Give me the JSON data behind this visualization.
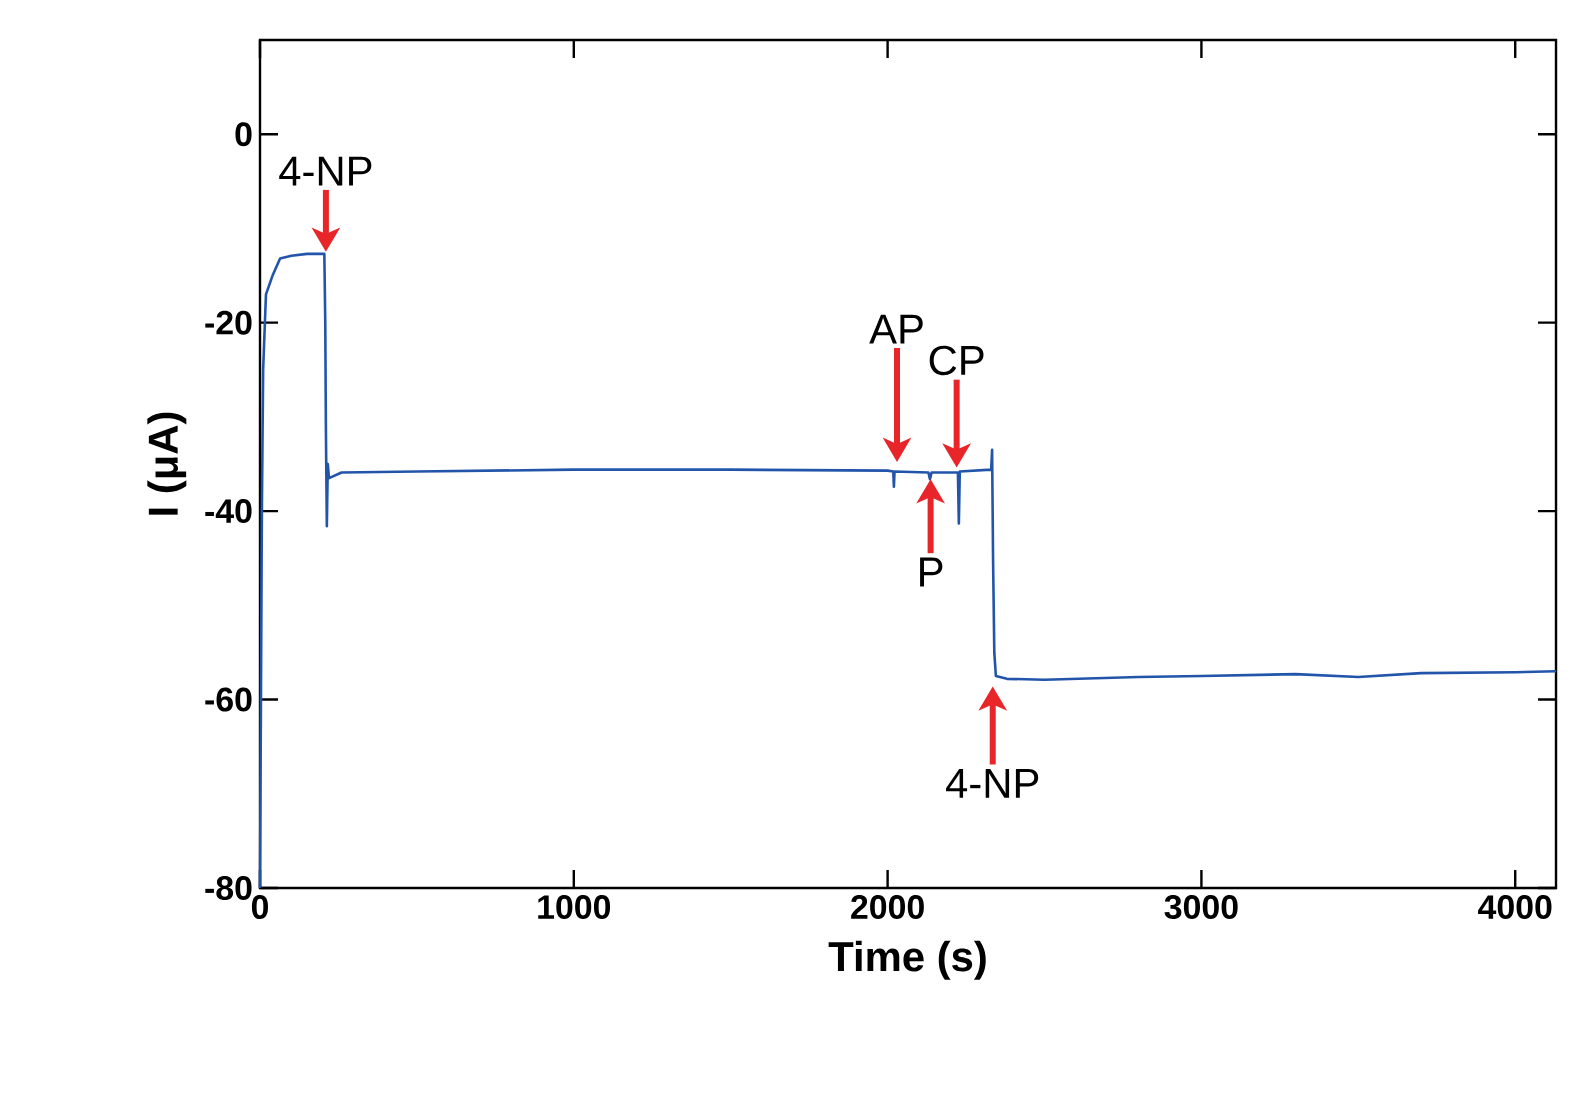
{
  "chart_data": {
    "type": "line",
    "xlabel": "Time (s)",
    "ylabel": "I (μA)",
    "xlim": [
      0,
      4130
    ],
    "ylim": [
      -80,
      10
    ],
    "xticks": [
      0,
      1000,
      2000,
      3000,
      4000
    ],
    "yticks": [
      -80,
      -60,
      -40,
      -20,
      0
    ],
    "grid": false,
    "marker": "none",
    "line_style": "solid",
    "series": [
      {
        "color": "#2255aa",
        "x": [
          0,
          3,
          6,
          10,
          19,
          40,
          64,
          100,
          150,
          205,
          208,
          210,
          213,
          216,
          220,
          260,
          500,
          1000,
          1500,
          2000,
          2018,
          2020,
          2022,
          2130,
          2135,
          2140,
          2224,
          2227,
          2230,
          2330,
          2333,
          2336,
          2340,
          2345,
          2380,
          2500,
          2800,
          3000,
          3300,
          3500,
          3700,
          4000,
          4130
        ],
        "values": [
          -80,
          -60,
          -40,
          -25,
          -17,
          -15,
          -13.2,
          -12.9,
          -12.7,
          -12.7,
          -20,
          -31.4,
          -41.6,
          -35,
          -36.5,
          -35.9,
          -35.8,
          -35.6,
          -35.6,
          -35.7,
          -35.8,
          -37.4,
          -35.8,
          -35.9,
          -36.6,
          -35.9,
          -35.9,
          -41.3,
          -35.8,
          -35.6,
          -33.5,
          -45,
          -55,
          -57.5,
          -57.8,
          -57.9,
          -57.6,
          -57.5,
          -57.3,
          -57.6,
          -57.2,
          -57.1,
          -57.0
        ]
      }
    ],
    "annotations": [
      {
        "text": "4-NP",
        "x": 210,
        "y": -12.7
      },
      {
        "text": "AP",
        "x": 2030,
        "y": -35
      },
      {
        "text": "P",
        "x": 2137,
        "y": -36.4
      },
      {
        "text": "CP",
        "x": 2220,
        "y": -35.6
      },
      {
        "text": "4-NP",
        "x": 2335,
        "y": -58.4
      }
    ]
  }
}
